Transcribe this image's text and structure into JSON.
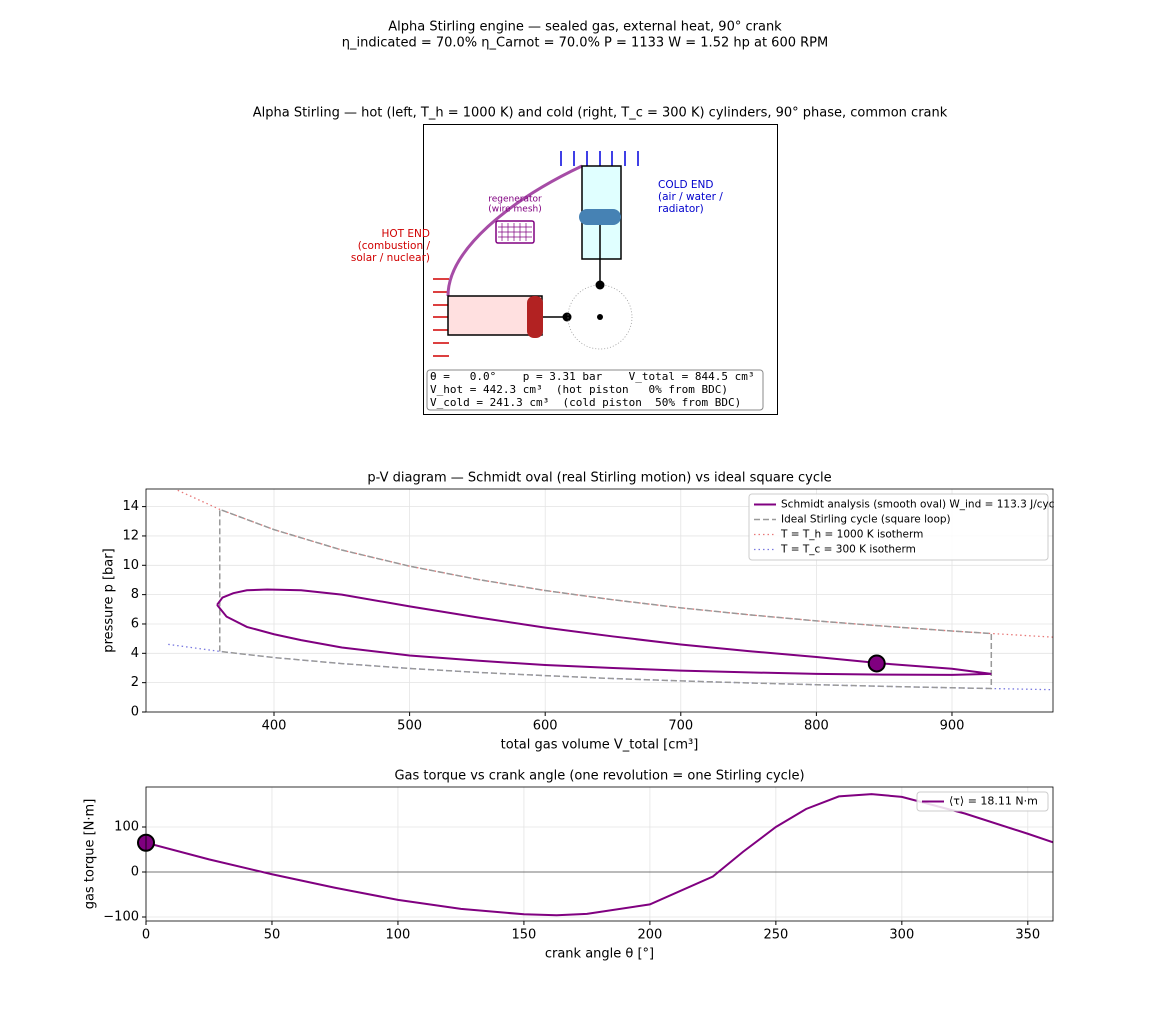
{
  "figure": {
    "title": "Alpha Stirling engine — sealed gas, external heat, 90° crank",
    "subtitle": "η_indicated = 70.0%   η_Carnot = 70.0%   P = 1133 W = 1.52 hp at 600 RPM"
  },
  "diagram": {
    "title": "Alpha Stirling — hot (left, T_h = 1000 K) and cold (right, T_c = 300 K) cylinders, 90° phase, common crank",
    "hot_label": [
      "HOT END",
      "(combustion /",
      "solar / nuclear)"
    ],
    "cold_label": [
      "COLD END",
      "(air / water /",
      "radiator)"
    ],
    "regenerator_label": [
      "regenerator",
      "(wire mesh)"
    ],
    "info": [
      "θ =   0.0°    p = 3.31 bar    V_total = 844.5 cm³",
      "V_hot = 442.3 cm³  (hot piston   0% from BDC)",
      "V_cold = 241.3 cm³  (cold piston  50% from BDC)"
    ]
  },
  "chart_data": [
    {
      "type": "line",
      "title": "p-V diagram — Schmidt oval (real Stirling motion) vs ideal square cycle",
      "x_label": "total gas volume V_total [cm³]",
      "y_label": "pressure p [bar]",
      "xlim": [
        305.6,
        974.5
      ],
      "ylim": [
        0,
        15.2
      ],
      "xticks": [
        400,
        500,
        600,
        700,
        800,
        900
      ],
      "yticks": [
        0,
        2,
        4,
        6,
        8,
        10,
        12,
        14
      ],
      "grid": true,
      "legend": "upper right",
      "series": [
        {
          "name": "Schmidt analysis (smooth oval)  W_ind = 113.3 J/cyc",
          "color": "#800080",
          "style": "solid",
          "x": [
            358,
            362,
            370,
            380,
            395,
            420,
            450,
            500,
            550,
            600,
            650,
            700,
            750,
            800,
            850,
            900,
            929,
            900,
            850,
            800,
            750,
            700,
            650,
            600,
            550,
            500,
            450,
            420,
            400,
            380,
            365,
            358
          ],
          "values": [
            7.3,
            7.8,
            8.1,
            8.3,
            8.35,
            8.3,
            8.0,
            7.2,
            6.45,
            5.75,
            5.15,
            4.6,
            4.15,
            3.75,
            3.3,
            2.95,
            2.6,
            2.53,
            2.55,
            2.6,
            2.7,
            2.82,
            3.0,
            3.2,
            3.5,
            3.85,
            4.4,
            4.9,
            5.3,
            5.8,
            6.5,
            7.3
          ]
        },
        {
          "name": "Ideal Stirling cycle (square loop)",
          "color": "#999999",
          "style": "dashed",
          "x": [
            360,
            360,
            400,
            450,
            500,
            550,
            600,
            650,
            700,
            750,
            800,
            850,
            900,
            929,
            929,
            900,
            850,
            800,
            750,
            700,
            650,
            600,
            550,
            500,
            450,
            400,
            360
          ],
          "values": [
            4.13,
            13.81,
            12.43,
            11.04,
            9.94,
            9.04,
            8.28,
            7.65,
            7.1,
            6.63,
            6.21,
            5.85,
            5.52,
            5.35,
            1.6,
            1.65,
            1.75,
            1.86,
            1.98,
            2.12,
            2.28,
            2.48,
            2.7,
            2.97,
            3.3,
            3.71,
            4.13
          ]
        },
        {
          "name": "T = T_h = 1000 K isotherm",
          "color": "#e87878",
          "style": "dotted",
          "x": [
            329,
            360,
            400,
            450,
            500,
            550,
            600,
            650,
            700,
            750,
            800,
            850,
            900,
            929,
            975
          ],
          "values": [
            15.11,
            13.81,
            12.43,
            11.04,
            9.94,
            9.04,
            8.28,
            7.65,
            7.1,
            6.63,
            6.21,
            5.85,
            5.52,
            5.35,
            5.1
          ]
        },
        {
          "name": "T = T_c = 300 K isotherm",
          "color": "#7878e0",
          "style": "dotted",
          "x": [
            322,
            360,
            400,
            450,
            500,
            550,
            600,
            650,
            700,
            750,
            800,
            850,
            900,
            929,
            975
          ],
          "values": [
            4.61,
            4.13,
            3.71,
            3.3,
            2.97,
            2.7,
            2.48,
            2.28,
            2.12,
            1.98,
            1.86,
            1.75,
            1.65,
            1.6,
            1.52
          ]
        }
      ],
      "marker": {
        "x": 844.5,
        "y": 3.31,
        "color": "#800080"
      }
    },
    {
      "type": "line",
      "title": "Gas torque vs crank angle (one revolution = one Stirling cycle)",
      "x_label": "crank angle θ [°]",
      "y_label": "gas torque [N·m]",
      "xlim": [
        0,
        360
      ],
      "ylim": [
        -108.9,
        188.9
      ],
      "xticks": [
        0,
        50,
        100,
        150,
        200,
        250,
        300,
        350
      ],
      "yticks": [
        {
          "value": -100,
          "label": "−100"
        },
        0,
        100
      ],
      "grid": true,
      "zero_line": true,
      "legend": "upper right",
      "series": [
        {
          "name": "⟨τ⟩ = 18.11 N·m",
          "color": "#800080",
          "style": "solid",
          "x": [
            0,
            25,
            50,
            75,
            100,
            125,
            150,
            163,
            175,
            200,
            225,
            237,
            250,
            262,
            275,
            288,
            300,
            325,
            350,
            360
          ],
          "values": [
            65,
            28,
            -5,
            -35,
            -62,
            -82,
            -94,
            -96,
            -93,
            -72,
            -10,
            45,
            100,
            140,
            168,
            173,
            167,
            130,
            85,
            66
          ]
        }
      ],
      "marker": {
        "x": 0,
        "y": 65,
        "color": "#800080"
      }
    }
  ]
}
